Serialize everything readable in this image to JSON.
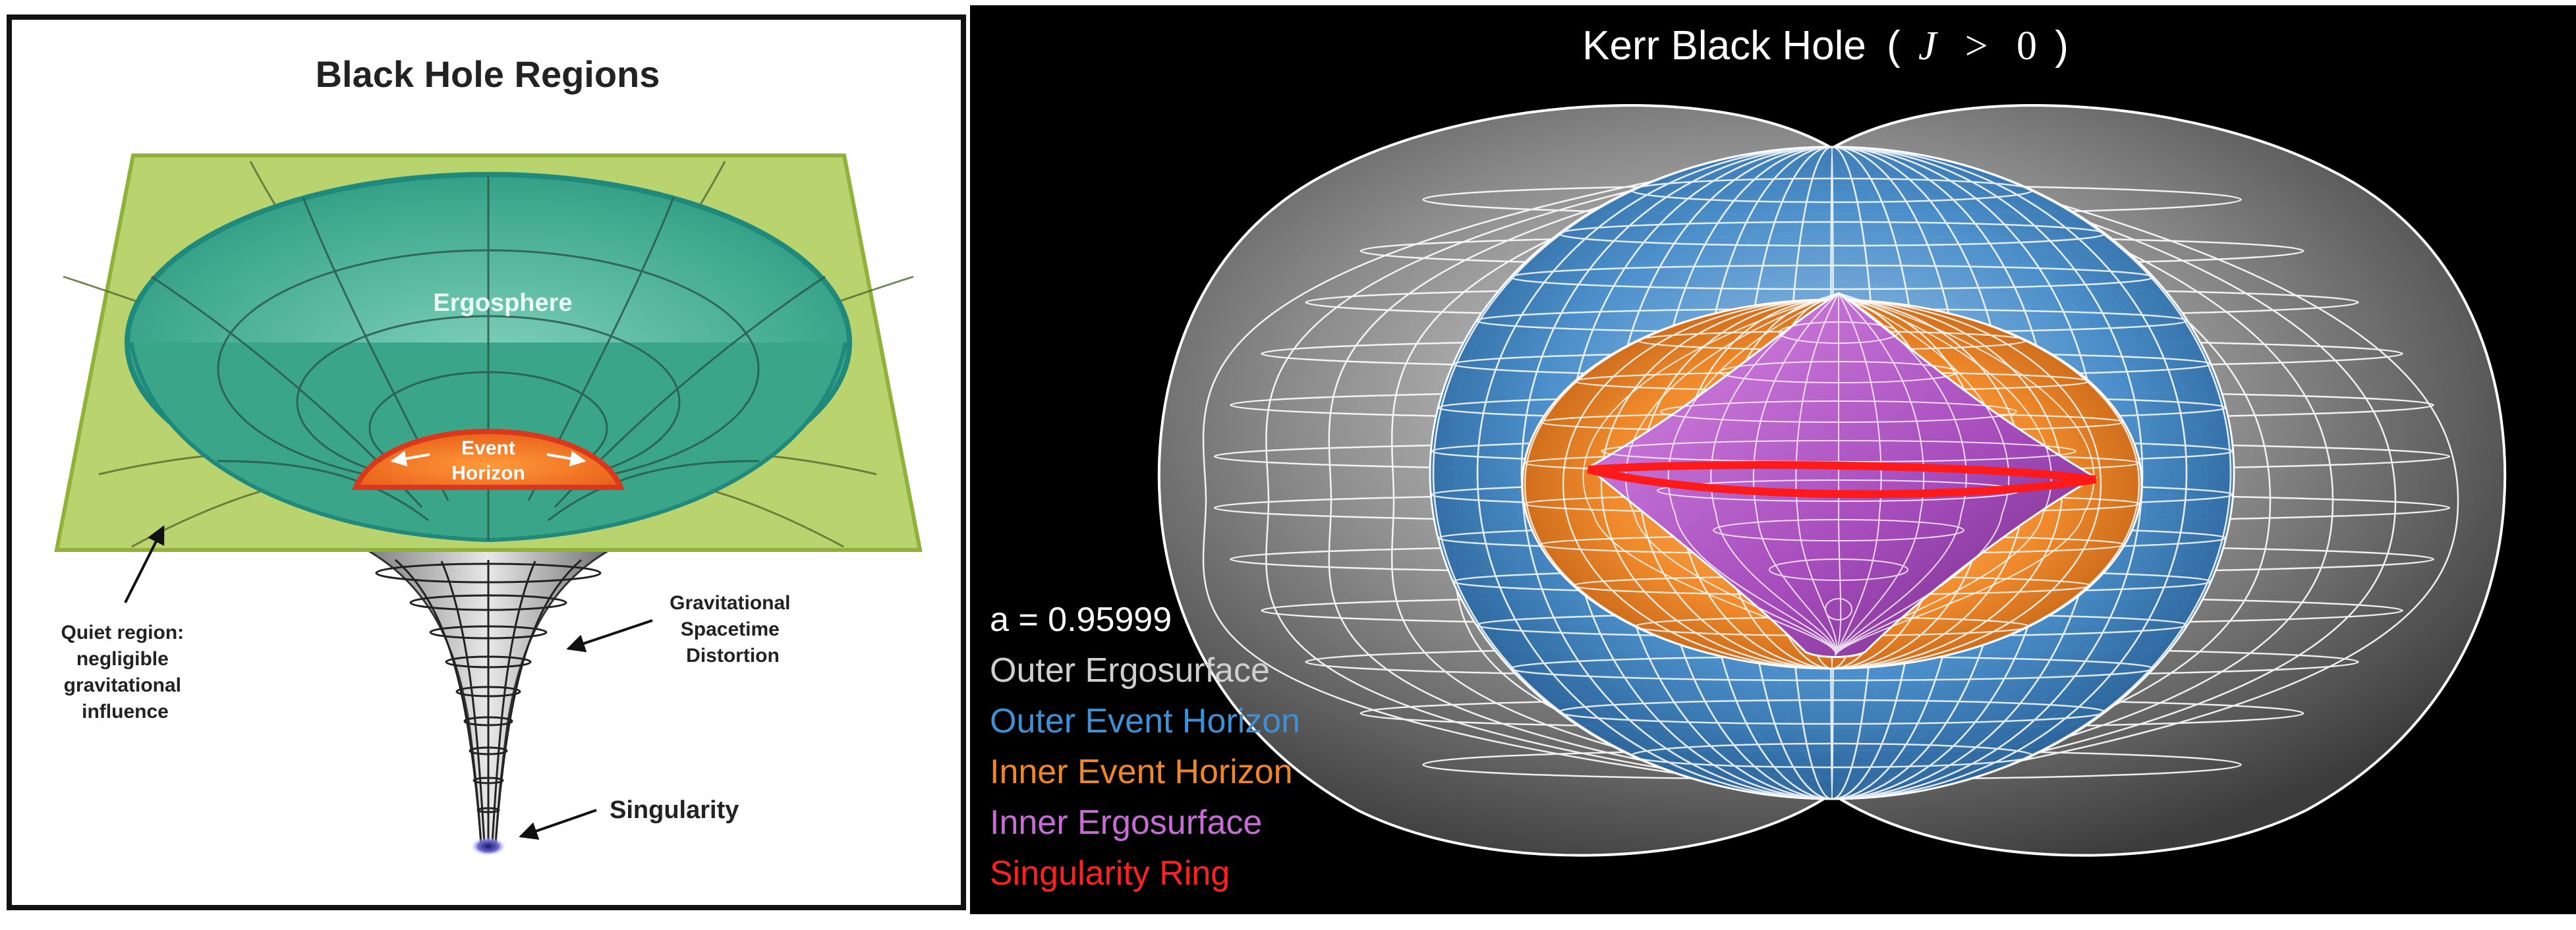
{
  "left_panel": {
    "title": "Black Hole Regions",
    "ergosphere_label": "Ergosphere",
    "event_horizon_label_line1": "Event",
    "event_horizon_label_line2": "Horizon",
    "quiet_region_label": [
      "Quiet region:",
      "negligible",
      "gravitational",
      "influence"
    ],
    "distortion_label": [
      "Gravitational",
      "Spacetime",
      "Distortion"
    ],
    "singularity_label": "Singularity",
    "colors": {
      "plane": "#b5d06a",
      "plane_edge": "#8fb23a",
      "ergosphere": "#3fae8f",
      "ergosphere_rim": "#1f8a7c",
      "event_horizon": "#ef6a1a",
      "event_horizon_rim": "#d9381c",
      "funnel": "#b8b8b8"
    }
  },
  "right_panel": {
    "title_prefix": "Kerr Black Hole",
    "title_math_open": "(",
    "title_math_J": "J",
    "title_math_gt": ">",
    "title_math_zero": "0",
    "title_math_close": ")",
    "spin_param": "a = 0.95999",
    "legend": [
      {
        "label": "Outer Ergosurface",
        "color": "#cfcfcf"
      },
      {
        "label": "Outer Event Horizon",
        "color": "#3d8fd6"
      },
      {
        "label": "Inner Event Horizon",
        "color": "#f0852a"
      },
      {
        "label": "Inner Ergosurface",
        "color": "#c86bd6"
      },
      {
        "label": "Singularity Ring",
        "color": "#ff2020"
      }
    ]
  }
}
